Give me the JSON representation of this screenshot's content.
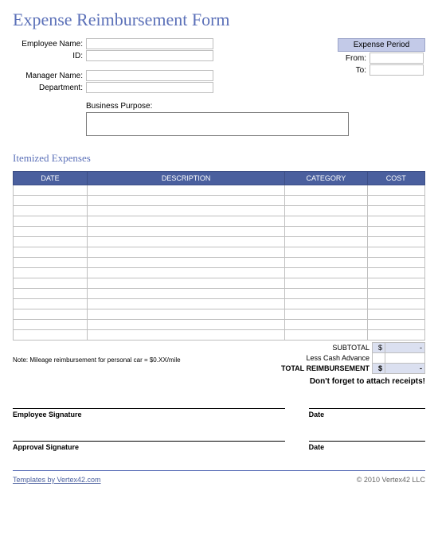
{
  "title": "Expense Reimbursement Form",
  "fields": {
    "employee_name_label": "Employee Name:",
    "id_label": "ID:",
    "manager_name_label": "Manager Name:",
    "department_label": "Department:",
    "expense_period_header": "Expense Period",
    "from_label": "From:",
    "to_label": "To:",
    "business_purpose_label": "Business Purpose:",
    "employee_name": "",
    "id": "",
    "manager_name": "",
    "department": "",
    "from": "",
    "to": "",
    "business_purpose": ""
  },
  "itemized": {
    "section_title": "Itemized Expenses",
    "columns": {
      "date": "DATE",
      "description": "DESCRIPTION",
      "category": "CATEGORY",
      "cost": "COST"
    },
    "row_count": 15,
    "column_widths_pct": [
      18,
      48,
      20,
      14
    ],
    "header_bg": "#4a5f9e",
    "header_fg": "#ffffff",
    "cell_border": "#bfbfbf"
  },
  "totals": {
    "subtotal_label": "SUBTOTAL",
    "subtotal_currency": "$",
    "subtotal_value": "-",
    "less_advance_label": "Less Cash Advance",
    "less_advance_value": "",
    "total_label": "TOTAL REIMBURSEMENT",
    "total_currency": "$",
    "total_value": "-",
    "shaded_bg": "#dbe0f0"
  },
  "note": "Note: Mileage reimbursement for personal car = $0.XX/mile",
  "reminder": "Don't forget to attach receipts!",
  "signatures": {
    "employee_label": "Employee Signature",
    "approval_label": "Approval Signature",
    "date_label": "Date"
  },
  "footer": {
    "link_text": "Templates by Vertex42.com",
    "copyright": "© 2010 Vertex42 LLC"
  },
  "colors": {
    "title": "#5b70b8",
    "accent_bg": "#c3cae8",
    "table_header_bg": "#4a5f9e",
    "table_header_fg": "#ffffff",
    "border": "#bfbfbf",
    "shaded": "#dbe0f0"
  },
  "typography": {
    "title_fontsize": 22,
    "body_fontsize": 10,
    "table_header_fontsize": 9,
    "note_fontsize": 8
  }
}
